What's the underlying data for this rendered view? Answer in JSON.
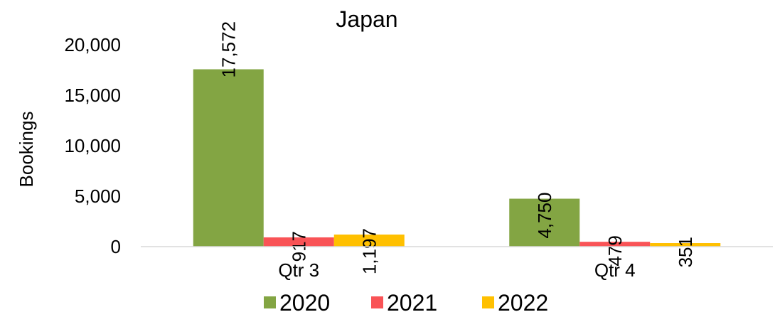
{
  "chart_data": {
    "type": "bar",
    "title": "Japan",
    "ylabel": "Bookings",
    "xlabel": "",
    "categories": [
      "Qtr 3",
      "Qtr 4"
    ],
    "series": [
      {
        "name": "2020",
        "color": "#83A543",
        "values": [
          17572,
          4750
        ],
        "labels": [
          "17,572",
          "4,750"
        ]
      },
      {
        "name": "2021",
        "color": "#F95356",
        "values": [
          917,
          479
        ],
        "labels": [
          "917",
          "479"
        ]
      },
      {
        "name": "2022",
        "color": "#FFC000",
        "values": [
          1197,
          351
        ],
        "labels": [
          "1,197",
          "351"
        ]
      }
    ],
    "ylim": [
      0,
      20000
    ],
    "yticks": [
      0,
      5000,
      10000,
      15000,
      20000
    ],
    "ytick_labels": [
      "0",
      "5,000",
      "10,000",
      "15,000",
      "20,000"
    ],
    "grid": false,
    "legend": "bottom"
  }
}
